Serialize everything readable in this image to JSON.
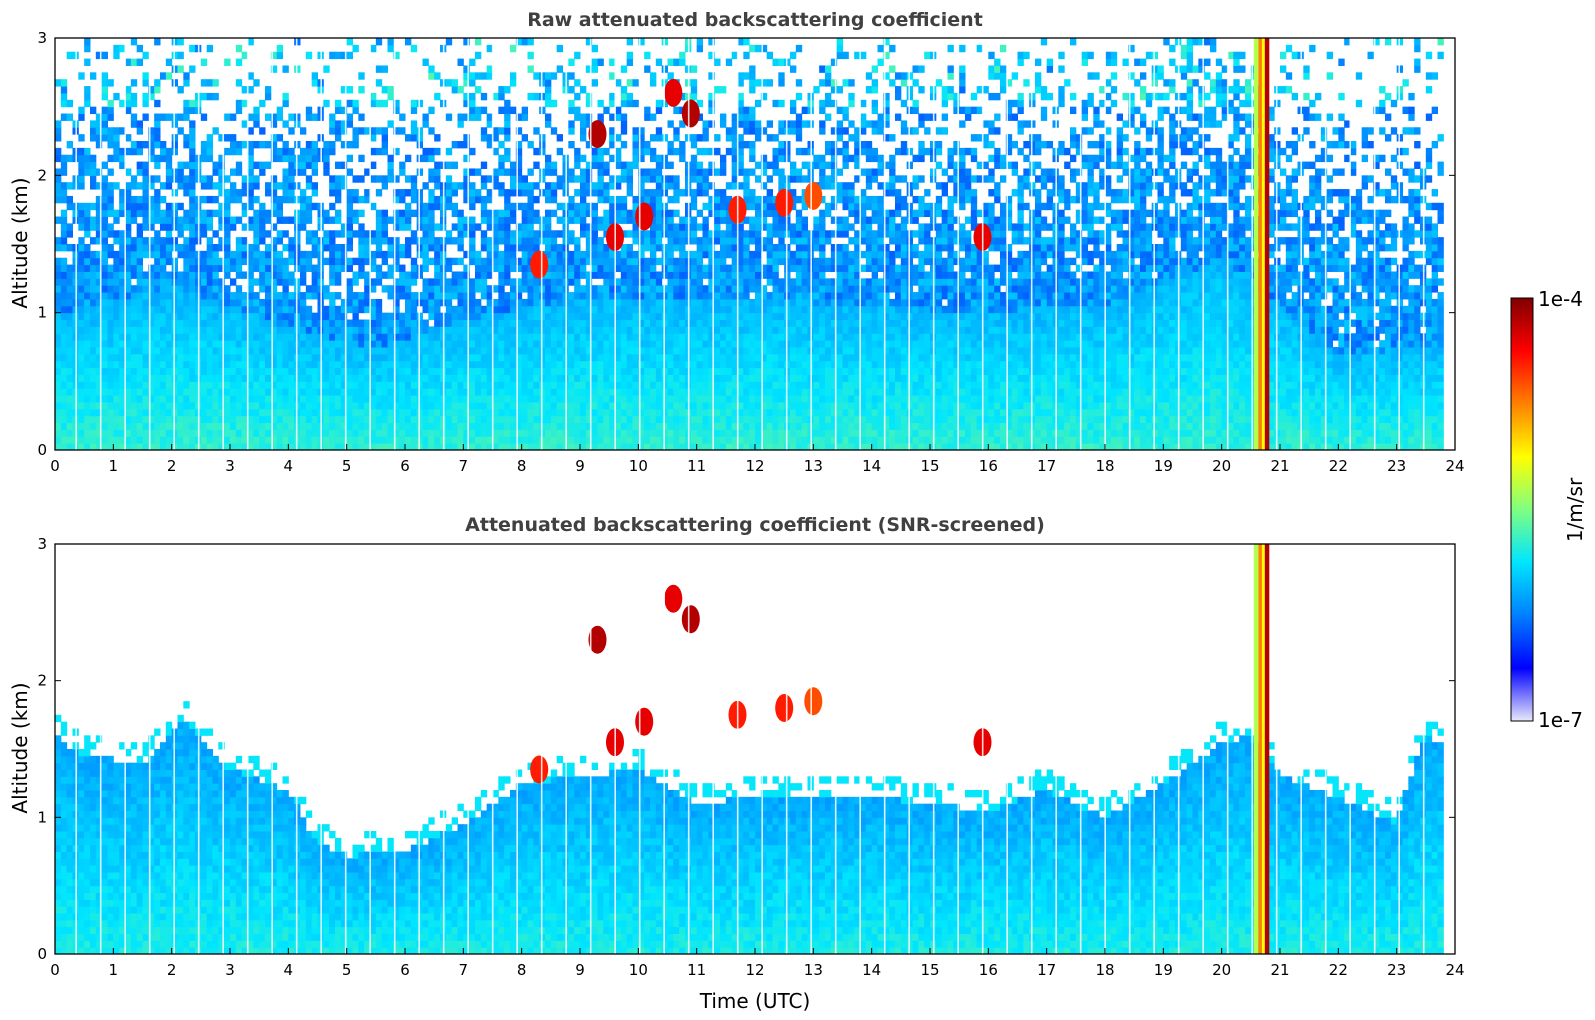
{
  "colors": {
    "jet_stops": [
      "#e8e8fa",
      "#0000ff",
      "#0080ff",
      "#00e5ff",
      "#80ff80",
      "#ffff00",
      "#ff8000",
      "#ff0000",
      "#800000"
    ],
    "title_color": "#404040",
    "background": "#ffffff"
  },
  "colorbar": {
    "label": "1/m/sr",
    "top_label": "1e-4",
    "bottom_label": "1e-7",
    "scale": "log",
    "range": [
      1e-07,
      0.0001
    ]
  },
  "chart_data": [
    {
      "type": "heatmap",
      "title": "Raw attenuated backscattering coefficient",
      "xlabel": "",
      "ylabel": "Altitude (km)",
      "xlim": [
        0,
        24
      ],
      "ylim": [
        0,
        3
      ],
      "xticks": [
        "0",
        "1",
        "2",
        "3",
        "4",
        "5",
        "6",
        "7",
        "8",
        "9",
        "10",
        "11",
        "12",
        "13",
        "14",
        "15",
        "16",
        "17",
        "18",
        "19",
        "20",
        "21",
        "22",
        "23",
        "24"
      ],
      "yticks": [
        "0",
        "1",
        "2",
        "3"
      ],
      "colorscale": "log10 backscatter, 1e-7 to 1e-4 1/m/sr",
      "features": {
        "aerosol_layer_top_km": [
          [
            0,
            1.0
          ],
          [
            2,
            1.2
          ],
          [
            4,
            0.9
          ],
          [
            5.5,
            0.75
          ],
          [
            7,
            0.95
          ],
          [
            9,
            1.1
          ],
          [
            12,
            1.1
          ],
          [
            16,
            1.0
          ],
          [
            18,
            1.05
          ],
          [
            20,
            1.4
          ],
          [
            22,
            0.7
          ],
          [
            23.5,
            0.75
          ],
          [
            24,
            0.8
          ]
        ],
        "cloud_patches": [
          {
            "t": 8.3,
            "z": 1.35,
            "level": 0.85
          },
          {
            "t": 9.3,
            "z": 2.3,
            "level": 0.95
          },
          {
            "t": 9.6,
            "z": 1.55,
            "level": 0.9
          },
          {
            "t": 10.1,
            "z": 1.7,
            "level": 0.9
          },
          {
            "t": 10.6,
            "z": 2.6,
            "level": 0.9
          },
          {
            "t": 10.9,
            "z": 2.45,
            "level": 0.95
          },
          {
            "t": 11.7,
            "z": 1.75,
            "level": 0.85
          },
          {
            "t": 12.5,
            "z": 1.8,
            "level": 0.85
          },
          {
            "t": 13.0,
            "z": 1.85,
            "level": 0.8
          },
          {
            "t": 15.9,
            "z": 1.55,
            "level": 0.9
          }
        ],
        "precipitation_column": {
          "t_start": 20.55,
          "t_end": 20.8,
          "z_top": 3.0
        }
      }
    },
    {
      "type": "heatmap",
      "title": "Attenuated backscattering coefficient (SNR-screened)",
      "xlabel": "Time (UTC)",
      "ylabel": "Altitude (km)",
      "xlim": [
        0,
        24
      ],
      "ylim": [
        0,
        3
      ],
      "xticks": [
        "0",
        "1",
        "2",
        "3",
        "4",
        "5",
        "6",
        "7",
        "8",
        "9",
        "10",
        "11",
        "12",
        "13",
        "14",
        "15",
        "16",
        "17",
        "18",
        "19",
        "20",
        "21",
        "22",
        "23",
        "24"
      ],
      "yticks": [
        "0",
        "1",
        "2",
        "3"
      ],
      "colorscale": "log10 backscatter, 1e-7 to 1e-4 1/m/sr",
      "features": {
        "screened_layer_top_km": [
          [
            0,
            1.6
          ],
          [
            0.5,
            1.45
          ],
          [
            1.5,
            1.4
          ],
          [
            2.2,
            1.7
          ],
          [
            3,
            1.35
          ],
          [
            4,
            1.2
          ],
          [
            4.5,
            0.8
          ],
          [
            5,
            0.72
          ],
          [
            6,
            0.75
          ],
          [
            7,
            0.95
          ],
          [
            8,
            1.25
          ],
          [
            9,
            1.3
          ],
          [
            10,
            1.35
          ],
          [
            11,
            1.1
          ],
          [
            12,
            1.15
          ],
          [
            14,
            1.15
          ],
          [
            16,
            1.05
          ],
          [
            17,
            1.2
          ],
          [
            18,
            1.0
          ],
          [
            19,
            1.25
          ],
          [
            20,
            1.55
          ],
          [
            20.5,
            1.6
          ],
          [
            21,
            1.3
          ],
          [
            22,
            1.15
          ],
          [
            23,
            0.95
          ],
          [
            23.3,
            1.4
          ],
          [
            23.5,
            1.6
          ],
          [
            24,
            1.5
          ]
        ]
      }
    }
  ]
}
